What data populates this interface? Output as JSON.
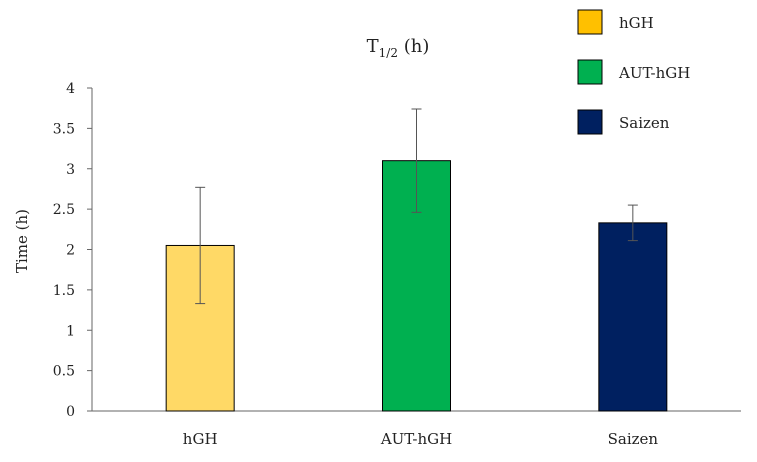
{
  "chart_data": {
    "type": "bar",
    "title_main": "T",
    "title_sub": "1/2",
    "title_tail": " (h)",
    "xlabel": "",
    "ylabel": "Time (h)",
    "categories": [
      "hGH",
      "AUT-hGH",
      "Saizen"
    ],
    "values": [
      2.05,
      3.1,
      2.33
    ],
    "errors": [
      0.72,
      0.64,
      0.22
    ],
    "colors": [
      "#FFD966",
      "#00B050",
      "#002060"
    ],
    "ylim": [
      0,
      4
    ],
    "yticks": [
      0,
      0.5,
      1,
      1.5,
      2,
      2.5,
      3,
      3.5,
      4
    ],
    "ytick_labels": [
      "0",
      "0.5",
      "1",
      "1.5",
      "2",
      "2.5",
      "3",
      "3.5",
      "4"
    ],
    "grid": false,
    "legend_position": "top-right",
    "legend": [
      {
        "label": "hGH",
        "color": "#FFC000"
      },
      {
        "label": "AUT-hGH",
        "color": "#00B050"
      },
      {
        "label": "Saizen",
        "color": "#002060"
      }
    ]
  }
}
